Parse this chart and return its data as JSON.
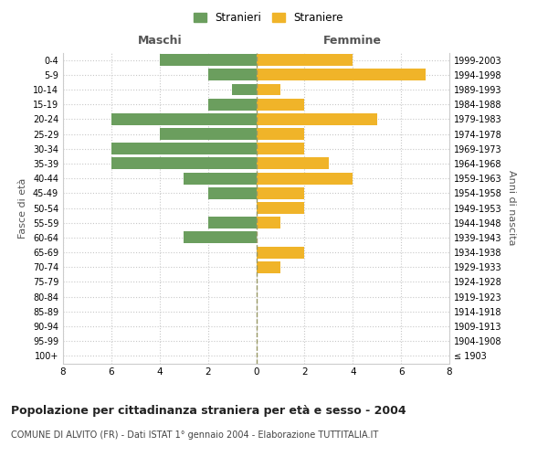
{
  "age_groups": [
    "100+",
    "95-99",
    "90-94",
    "85-89",
    "80-84",
    "75-79",
    "70-74",
    "65-69",
    "60-64",
    "55-59",
    "50-54",
    "45-49",
    "40-44",
    "35-39",
    "30-34",
    "25-29",
    "20-24",
    "15-19",
    "10-14",
    "5-9",
    "0-4"
  ],
  "birth_years": [
    "≤ 1903",
    "1904-1908",
    "1909-1913",
    "1914-1918",
    "1919-1923",
    "1924-1928",
    "1929-1933",
    "1934-1938",
    "1939-1943",
    "1944-1948",
    "1949-1953",
    "1954-1958",
    "1959-1963",
    "1964-1968",
    "1969-1973",
    "1974-1978",
    "1979-1983",
    "1984-1988",
    "1989-1993",
    "1994-1998",
    "1999-2003"
  ],
  "maschi": [
    0,
    0,
    0,
    0,
    0,
    0,
    0,
    0,
    3,
    2,
    0,
    2,
    3,
    6,
    6,
    4,
    6,
    2,
    1,
    2,
    4
  ],
  "femmine": [
    0,
    0,
    0,
    0,
    0,
    0,
    1,
    2,
    0,
    1,
    2,
    2,
    4,
    3,
    2,
    2,
    5,
    2,
    1,
    7,
    4
  ],
  "maschi_color": "#6b9e5e",
  "femmine_color": "#f0b429",
  "background_color": "#ffffff",
  "grid_color": "#cccccc",
  "title": "Popolazione per cittadinanza straniera per età e sesso - 2004",
  "subtitle": "COMUNE DI ALVITO (FR) - Dati ISTAT 1° gennaio 2004 - Elaborazione TUTTITALIA.IT",
  "left_label": "Maschi",
  "right_label": "Femmine",
  "ylabel_left": "Fasce di età",
  "ylabel_right": "Anni di nascita",
  "legend_maschi": "Stranieri",
  "legend_femmine": "Straniere",
  "xlim": 8,
  "bar_height": 0.8
}
